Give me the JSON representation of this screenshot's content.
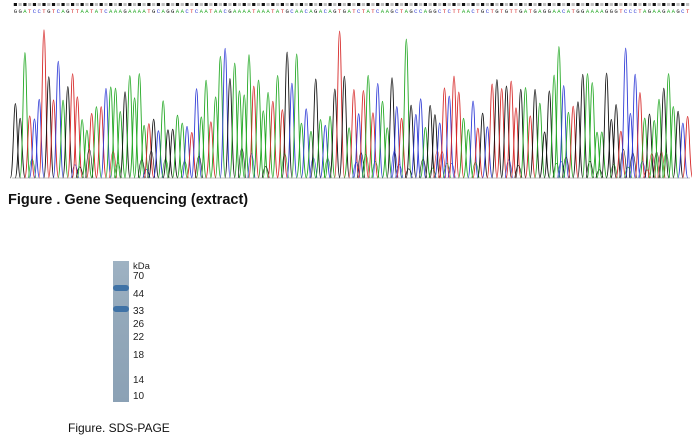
{
  "sequencing": {
    "bases": "GGATCCTGTCAGTTAATATCAAAGAAAATGCAGGAACTCAATAACGAAAATAAATATGCAACAGACAGTGATCTATCAAGCTAGCCAGGCTCTTAACTGCTGTGTTGATGAGGAACATGGAAAAGGGTCCCTAGAAGAAGCT",
    "colors": {
      "A": "#22a823",
      "C": "#2f3bd6",
      "G": "#111111",
      "T": "#d62828"
    },
    "caption": "Figure . Gene Sequencing (extract)"
  },
  "sds_page": {
    "unit": "kDa",
    "markers": [
      "70",
      "44",
      "33",
      "26",
      "22",
      "18",
      "14",
      "10"
    ],
    "band_color": "#3f72a6",
    "caption": "Figure. SDS-PAGE"
  }
}
